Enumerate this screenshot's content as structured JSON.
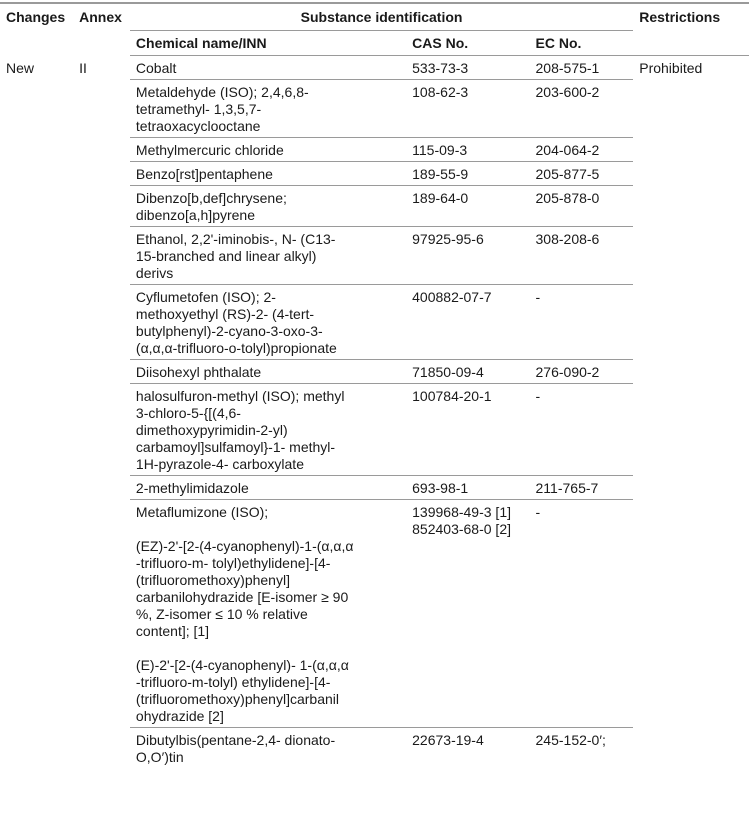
{
  "headers": {
    "changes": "Changes",
    "annex": "Annex",
    "substance_identification": "Substance identification",
    "restrictions": "Restrictions",
    "chemical_name": "Chemical name/INN",
    "cas_no": "CAS No.",
    "ec_no": "EC No."
  },
  "group": {
    "changes": "New",
    "annex": "II",
    "restrictions": "Prohibited"
  },
  "rows": [
    {
      "name": "Cobalt",
      "cas": "533-73-3",
      "ec": "208-575-1"
    },
    {
      "name": "Metaldehyde (ISO); 2,4,6,8-\ntetramethyl- 1,3,5,7-\ntetraoxacyclooctane",
      "cas": "108-62-3",
      "ec": "203-600-2"
    },
    {
      "name": "Methylmercuric chloride",
      "cas": "115-09-3",
      "ec": "204-064-2"
    },
    {
      "name": "Benzo[rst]pentaphene",
      "cas": "189-55-9",
      "ec": "205-877-5"
    },
    {
      "name": "Dibenzo[b,def]chrysene;\ndibenzo[a,h]pyrene",
      "cas": "189-64-0",
      "ec": "205-878-0"
    },
    {
      "name": "Ethanol, 2,2'-iminobis-, N- (C13-\n15-branched and linear alkyl)\nderivs",
      "cas": "97925-95-6",
      "ec": "308-208-6"
    },
    {
      "name": "Cyflumetofen (ISO); 2-\nmethoxyethyl (RS)-2- (4-tert-\nbutylphenyl)-2-cyano-3-oxo-3-\n(α,α,α-trifluoro-o-tolyl)propionate",
      "cas": "400882-07-7",
      "ec": "-"
    },
    {
      "name": "Diisohexyl phthalate",
      "cas": "71850-09-4",
      "ec": "276-090-2"
    },
    {
      "name": "halosulfuron-methyl (ISO); methyl\n3-chloro-5-{[(4,6-\ndimethoxypyrimidin-2-yl)\ncarbamoyl]sulfamoyl}-1- methyl-\n1H-pyrazole-4- carboxylate",
      "cas": "100784-20-1",
      "ec": "-"
    },
    {
      "name": "2-methylimidazole",
      "cas": "693-98-1",
      "ec": "211-765-7"
    },
    {
      "name": "Metaflumizone (ISO);\n\n(EZ)-2'-[2-(4-cyanophenyl)-1-(α,α,α\n-trifluoro-m- tolyl)ethylidene]-[4-\n(trifluoromethoxy)phenyl]\ncarbanilohydrazide [E-isomer ≥ 90\n%, Z-isomer ≤ 10 % relative\ncontent]; [1]\n\n(E)-2'-[2-(4-cyanophenyl)- 1-(α,α,α\n-trifluoro-m-tolyl) ethylidene]-[4-\n(trifluoromethoxy)phenyl]carbanil\nohydrazide [2]",
      "cas": "139968-49-3 [1]\n852403-68-0 [2]",
      "ec": "-"
    },
    {
      "name": "Dibutylbis(pentane-2,4- dionato-\nO,O′)tin",
      "cas": "22673-19-4",
      "ec": "245-152-0′;"
    }
  ]
}
